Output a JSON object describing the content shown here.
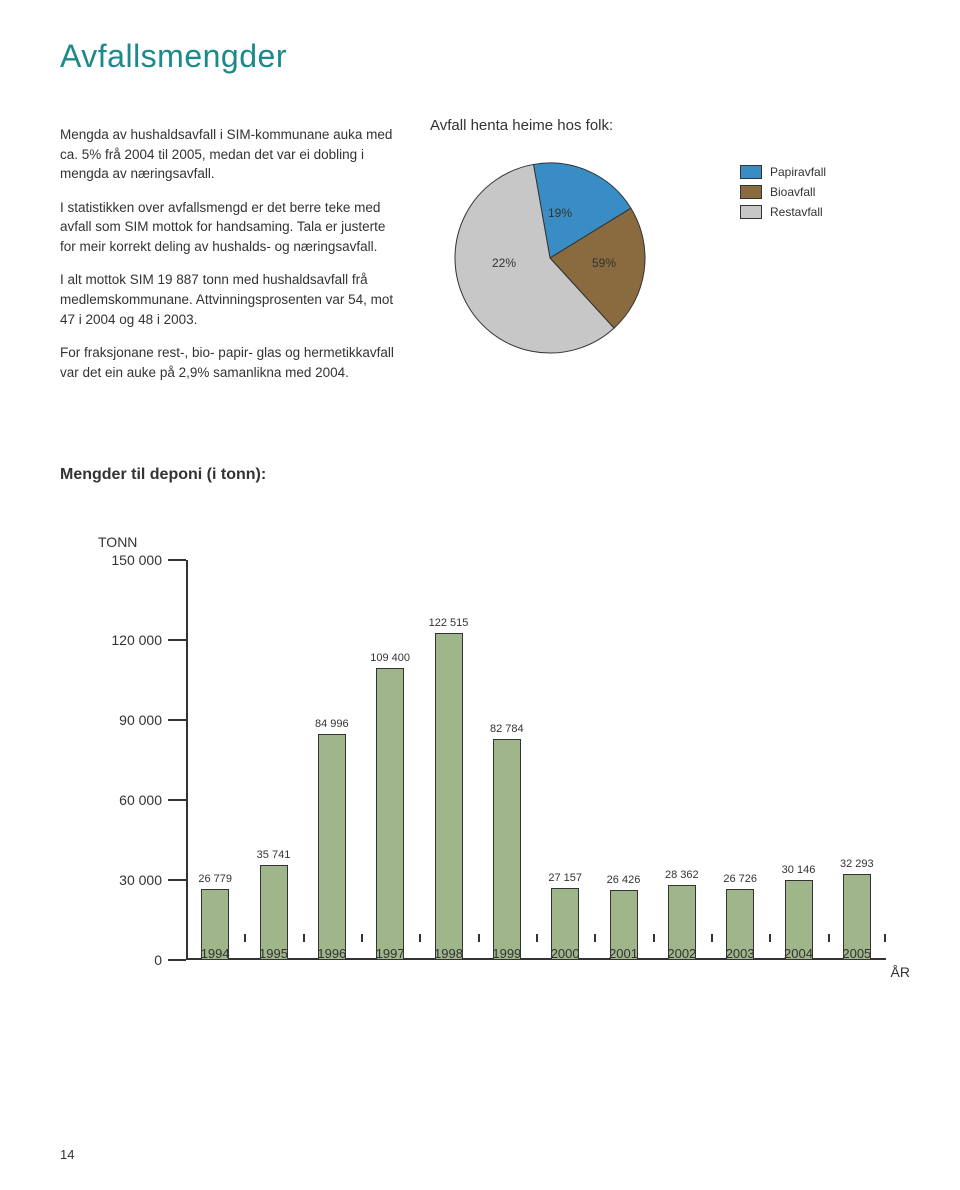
{
  "page": {
    "title": "Avfallsmengder",
    "pageNumber": "14"
  },
  "body": {
    "p1": "Mengda av hushaldsavfall i SIM-kommunane auka med ca. 5% frå 2004 til 2005, medan det var ei dobling i mengda av næringsavfall.",
    "p2": "I statistikken over avfallsmengd er det berre teke med avfall som SIM mottok for handsaming. Tala er justerte for meir korrekt deling av hushalds-  og næringsavfall.",
    "p3": "I alt mottok SIM 19 887 tonn med hushaldsavfall frå medlemskommunane. Attvinningsprosenten var 54, mot 47 i 2004 og 48 i 2003.",
    "p4": "For fraksjonane rest-, bio- papir- glas og hermetikkavfall var det ein auke på 2,9% samanlikna med 2004."
  },
  "pie": {
    "title": "Avfall henta heime hos folk:",
    "slices": [
      {
        "label": "19%",
        "value": 19,
        "color": "#3a8dc4"
      },
      {
        "label": "22%",
        "value": 22,
        "color": "#8a6a3f"
      },
      {
        "label": "59%",
        "value": 59,
        "color": "#c7c7c7"
      }
    ],
    "stroke": "#333333",
    "background": "#ffffff"
  },
  "legend": {
    "items": [
      {
        "label": "Papiravfall",
        "color": "#3a8dc4"
      },
      {
        "label": "Bioavfall",
        "color": "#8a6a3f"
      },
      {
        "label": "Restavfall",
        "color": "#c7c7c7"
      }
    ]
  },
  "bar": {
    "title": "Mengder til deponi (i tonn):",
    "yAxisLabel": "TONN",
    "xAxisLabel": "ÅR",
    "ymax": 150000,
    "yticks": [
      {
        "value": 150000,
        "label": "150 000"
      },
      {
        "value": 120000,
        "label": "120 000"
      },
      {
        "value": 90000,
        "label": "90 000"
      },
      {
        "value": 60000,
        "label": "60 000"
      },
      {
        "value": 30000,
        "label": "30 000"
      },
      {
        "value": 0,
        "label": "0"
      }
    ],
    "barColor": "#9fb58a",
    "barBorder": "#333333",
    "years": [
      "1994",
      "1995",
      "1996",
      "1997",
      "1998",
      "1999",
      "2000",
      "2001",
      "2002",
      "2003",
      "2004",
      "2005"
    ],
    "data": [
      {
        "year": "1994",
        "value": 26779,
        "label": "26 779"
      },
      {
        "year": "1995",
        "value": 35741,
        "label": "35 741"
      },
      {
        "year": "1996",
        "value": 84996,
        "label": "84 996"
      },
      {
        "year": "1997",
        "value": 109400,
        "label": "109 400"
      },
      {
        "year": "1998",
        "value": 122515,
        "label": "122 515"
      },
      {
        "year": "1999",
        "value": 82784,
        "label": "82 784"
      },
      {
        "year": "2000",
        "value": 27157,
        "label": "27 157"
      },
      {
        "year": "2001",
        "value": 26426,
        "label": "26 426"
      },
      {
        "year": "2002",
        "value": 28362,
        "label": "28 362"
      },
      {
        "year": "2003",
        "value": 26726,
        "label": "26 726"
      },
      {
        "year": "2004",
        "value": 30146,
        "label": "30 146"
      },
      {
        "year": "2005",
        "value": 32293,
        "label": "32 293"
      }
    ]
  }
}
